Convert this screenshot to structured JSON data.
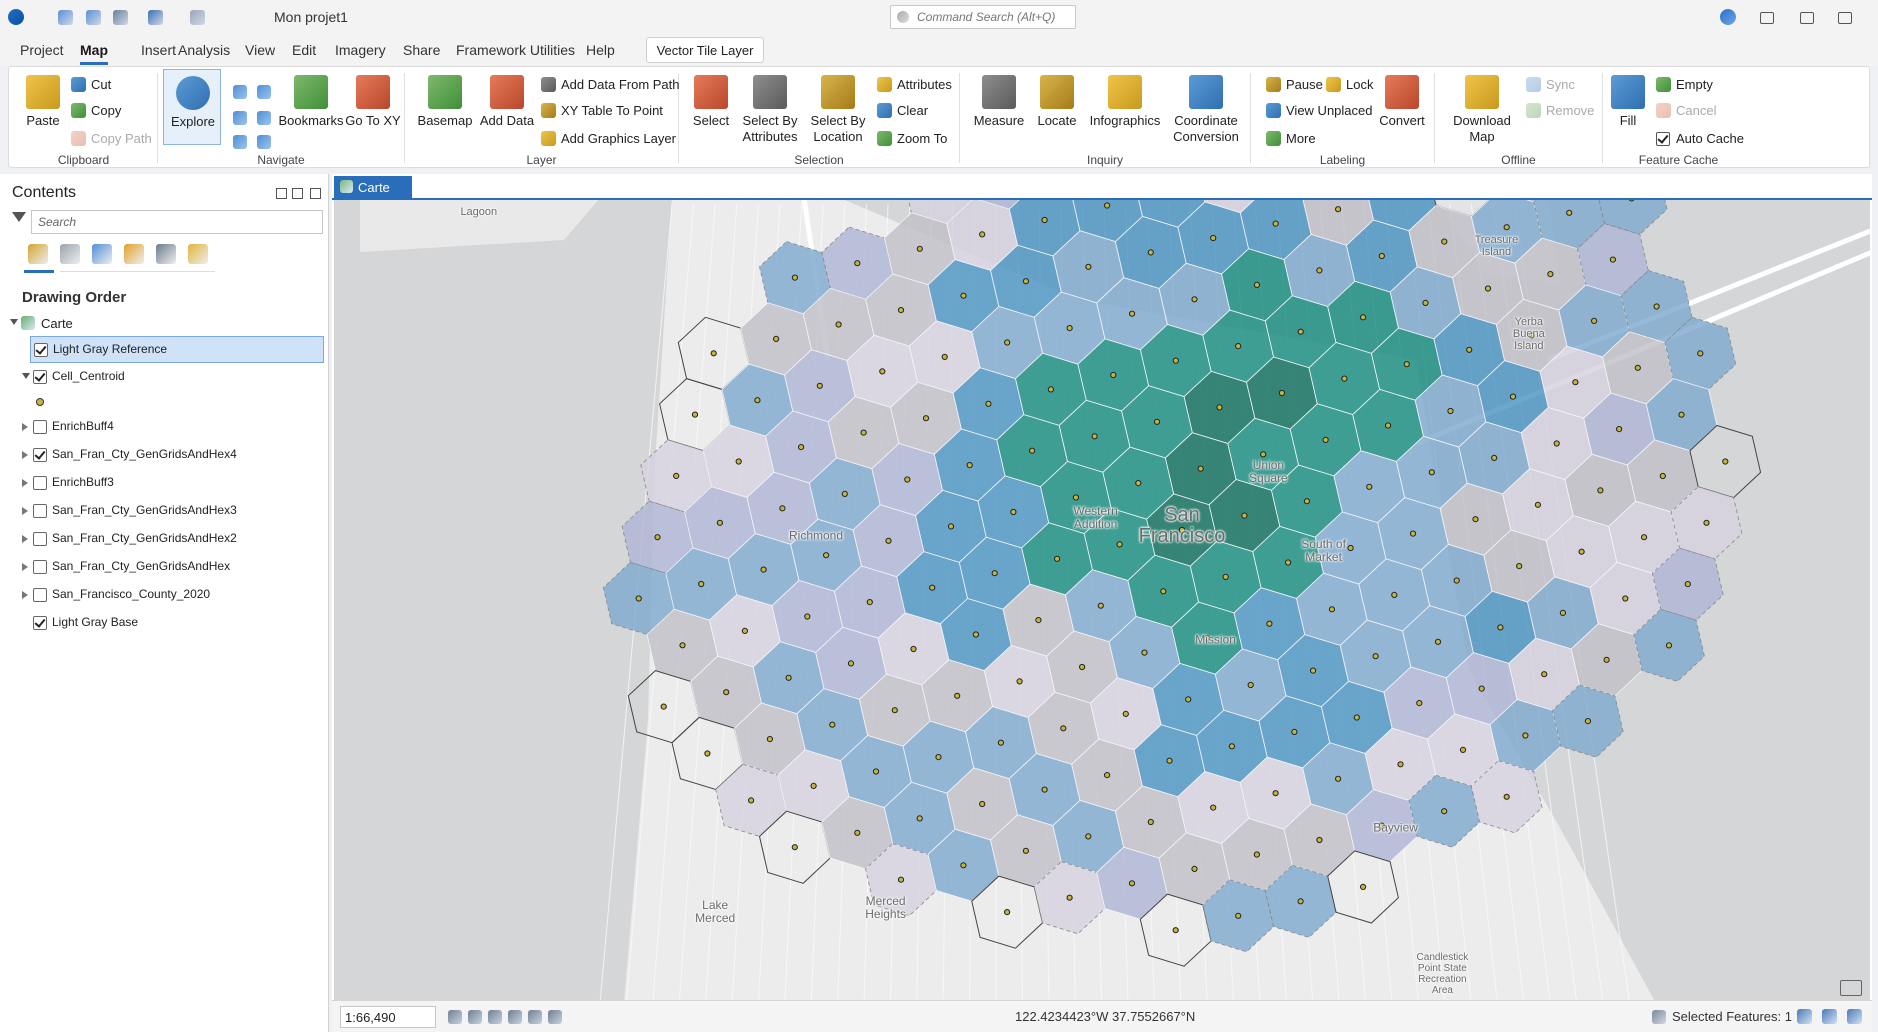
{
  "title_bar": {
    "project_name": "Mon projet1",
    "command_search": "Command Search (Alt+Q)"
  },
  "tabs": {
    "items": [
      "Project",
      "Map",
      "Insert",
      "Analysis",
      "View",
      "Edit",
      "Imagery",
      "Share",
      "Framework Utilities",
      "Help"
    ],
    "active": 1,
    "contextual": "Vector Tile Layer"
  },
  "ribbon": {
    "groups": [
      {
        "label": "Clipboard",
        "items": [
          {
            "label": "Paste"
          },
          {
            "label": "Cut"
          },
          {
            "label": "Copy"
          },
          {
            "label": "Copy Path",
            "disabled": true
          }
        ]
      },
      {
        "label": "Navigate",
        "items": [
          {
            "label": "Explore"
          },
          {
            "label": "Bookmarks"
          },
          {
            "label": "Go To XY"
          }
        ]
      },
      {
        "label": "Layer",
        "items": [
          {
            "label": "Basemap"
          },
          {
            "label": "Add Data"
          },
          {
            "label": "Add Data From Path"
          },
          {
            "label": "XY Table To Point"
          },
          {
            "label": "Add Graphics Layer"
          }
        ]
      },
      {
        "label": "Selection",
        "items": [
          {
            "label": "Select"
          },
          {
            "label": "Select By Attributes"
          },
          {
            "label": "Select By Location"
          },
          {
            "label": "Attributes"
          },
          {
            "label": "Clear"
          },
          {
            "label": "Zoom To"
          }
        ]
      },
      {
        "label": "Inquiry",
        "items": [
          {
            "label": "Measure"
          },
          {
            "label": "Locate"
          },
          {
            "label": "Infographics"
          },
          {
            "label": "Coordinate Conversion"
          }
        ]
      },
      {
        "label": "Labeling",
        "items": [
          {
            "label": "Pause"
          },
          {
            "label": "Lock"
          },
          {
            "label": "View Unplaced"
          },
          {
            "label": "More"
          },
          {
            "label": "Convert"
          }
        ]
      },
      {
        "label": "Offline",
        "items": [
          {
            "label": "Download Map"
          },
          {
            "label": "Sync",
            "disabled": true
          },
          {
            "label": "Remove",
            "disabled": true
          }
        ]
      },
      {
        "label": "Feature Cache",
        "items": [
          {
            "label": "Fill"
          },
          {
            "label": "Empty"
          },
          {
            "label": "Cancel",
            "disabled": true
          },
          {
            "label": "Auto Cache",
            "checked": true
          }
        ]
      }
    ]
  },
  "contents": {
    "title": "Contents",
    "search_placeholder": "Search",
    "section": "Drawing Order",
    "map_name": "Carte",
    "layers": [
      {
        "name": "Light Gray Reference",
        "checked": true,
        "selected": true
      },
      {
        "name": "Cell_Centroid",
        "checked": true,
        "expanded": true
      },
      {
        "name": "EnrichBuff4",
        "checked": false
      },
      {
        "name": "San_Fran_Cty_GenGridsAndHex4",
        "checked": true
      },
      {
        "name": "EnrichBuff3",
        "checked": false
      },
      {
        "name": "San_Fran_Cty_GenGridsAndHex3",
        "checked": false
      },
      {
        "name": "San_Fran_Cty_GenGridsAndHex2",
        "checked": false
      },
      {
        "name": "San_Fran_Cty_GenGridsAndHex",
        "checked": false
      },
      {
        "name": "San_Francisco_County_2020",
        "checked": false
      },
      {
        "name": "Light Gray Base",
        "checked": true
      }
    ]
  },
  "map_view": {
    "tab": "Carte",
    "labels": [
      "San Francisco",
      "Richmond",
      "Western Addition",
      "Union Square",
      "South of Market",
      "Mission",
      "Bayview",
      "Merced Heights",
      "Lake Merced",
      "Treasure Island",
      "Yerba Buena Island",
      "Candlestick Point State Recreation Area",
      "Lagoon"
    ]
  },
  "status_bar": {
    "scale": "1:66,490",
    "coordinates": "122.4234423°W 37.7552667°N",
    "selected_features": "Selected Features: 1"
  }
}
